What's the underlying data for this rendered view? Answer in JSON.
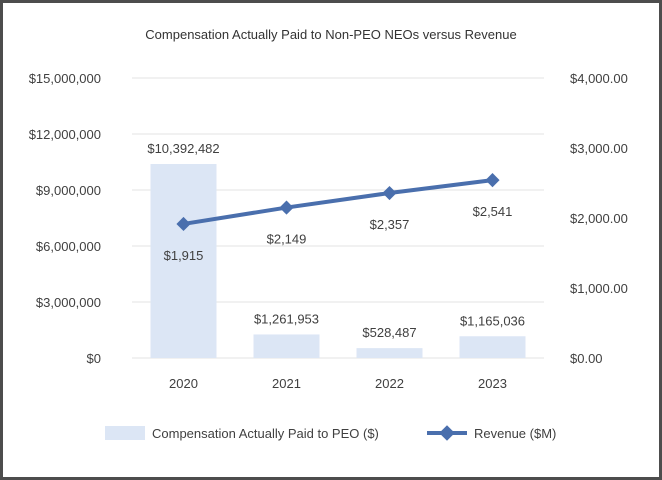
{
  "chart_data": {
    "type": "bar+line",
    "title": "Compensation Actually Paid to Non-PEO NEOs versus Revenue",
    "categories": [
      "2020",
      "2021",
      "2022",
      "2023"
    ],
    "left_axis": {
      "ylim": [
        0,
        15000000
      ],
      "ticks": [
        0,
        3000000,
        6000000,
        9000000,
        12000000,
        15000000
      ],
      "tick_labels": [
        "$0",
        "$3,000,000",
        "$6,000,000",
        "$9,000,000",
        "$12,000,000",
        "$15,000,000"
      ]
    },
    "right_axis": {
      "ylim": [
        0,
        4000
      ],
      "ticks": [
        0,
        1000,
        2000,
        3000,
        4000
      ],
      "tick_labels": [
        "$0.00",
        "$1,000.00",
        "$2,000.00",
        "$3,000.00",
        "$4,000.00"
      ]
    },
    "series": [
      {
        "name": "Compensation Actually Paid to PEO ($)",
        "type": "bar",
        "axis": "left",
        "color": "#dce6f5",
        "values": [
          10392482,
          1261953,
          528487,
          1165036
        ],
        "labels": [
          "$10,392,482",
          "$1,261,953",
          "$528,487",
          "$1,165,036"
        ]
      },
      {
        "name": "Revenue ($M)",
        "type": "line",
        "axis": "right",
        "color": "#4a6fad",
        "values": [
          1915,
          2149,
          2357,
          2541
        ],
        "labels": [
          "$1,915",
          "$2,149",
          "$2,357",
          "$2,541"
        ]
      }
    ],
    "legend_position": "bottom",
    "grid": true
  }
}
